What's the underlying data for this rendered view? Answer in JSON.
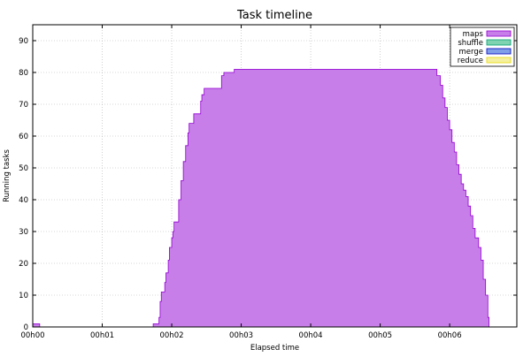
{
  "chart_data": {
    "type": "area",
    "title": "Task timeline",
    "xlabel": "Elapsed time",
    "ylabel": "Running tasks",
    "xlim": [
      0,
      418
    ],
    "ylim": [
      0,
      95
    ],
    "x_ticks": [
      {
        "value": 0,
        "label": "00h00"
      },
      {
        "value": 60,
        "label": "00h01"
      },
      {
        "value": 120,
        "label": "00h02"
      },
      {
        "value": 180,
        "label": "00h03"
      },
      {
        "value": 240,
        "label": "00h04"
      },
      {
        "value": 300,
        "label": "00h05"
      },
      {
        "value": 360,
        "label": "00h06"
      }
    ],
    "y_ticks": [
      0,
      10,
      20,
      30,
      40,
      50,
      60,
      70,
      80,
      90
    ],
    "grid": true,
    "legend_position": "top-right",
    "series": [
      {
        "name": "maps",
        "color": "#c77ee8",
        "stroke": "#9400d3",
        "points": [
          [
            0,
            1
          ],
          [
            5,
            1
          ],
          [
            6,
            0
          ],
          [
            103,
            0
          ],
          [
            104,
            1
          ],
          [
            108,
            1
          ],
          [
            109,
            3
          ],
          [
            110,
            8
          ],
          [
            111,
            11
          ],
          [
            113,
            11
          ],
          [
            114,
            14
          ],
          [
            115,
            17
          ],
          [
            117,
            21
          ],
          [
            118,
            25
          ],
          [
            120,
            28
          ],
          [
            121,
            30
          ],
          [
            122,
            33
          ],
          [
            124,
            33
          ],
          [
            126,
            40
          ],
          [
            128,
            46
          ],
          [
            130,
            52
          ],
          [
            132,
            57
          ],
          [
            134,
            61
          ],
          [
            135,
            64
          ],
          [
            138,
            64
          ],
          [
            139,
            67
          ],
          [
            143,
            67
          ],
          [
            145,
            71
          ],
          [
            146,
            73
          ],
          [
            148,
            75
          ],
          [
            161,
            75
          ],
          [
            163,
            79
          ],
          [
            165,
            80
          ],
          [
            173,
            80
          ],
          [
            174,
            81
          ],
          [
            346,
            81
          ],
          [
            349,
            79
          ],
          [
            352,
            76
          ],
          [
            354,
            72
          ],
          [
            356,
            69
          ],
          [
            358,
            65
          ],
          [
            360,
            62
          ],
          [
            362,
            58
          ],
          [
            364,
            55
          ],
          [
            366,
            51
          ],
          [
            368,
            48
          ],
          [
            370,
            45
          ],
          [
            372,
            43
          ],
          [
            374,
            41
          ],
          [
            376,
            38
          ],
          [
            378,
            35
          ],
          [
            380,
            31
          ],
          [
            382,
            28
          ],
          [
            385,
            25
          ],
          [
            387,
            21
          ],
          [
            389,
            15
          ],
          [
            391,
            10
          ],
          [
            393,
            3
          ],
          [
            394,
            0
          ]
        ]
      },
      {
        "name": "shuffle",
        "color": "#7fd3b0",
        "stroke": "#009e73",
        "points": []
      },
      {
        "name": "merge",
        "color": "#7f9fe8",
        "stroke": "#0000c0",
        "points": []
      },
      {
        "name": "reduce",
        "color": "#f5f0a0",
        "stroke": "#e6d800",
        "points": []
      }
    ]
  }
}
